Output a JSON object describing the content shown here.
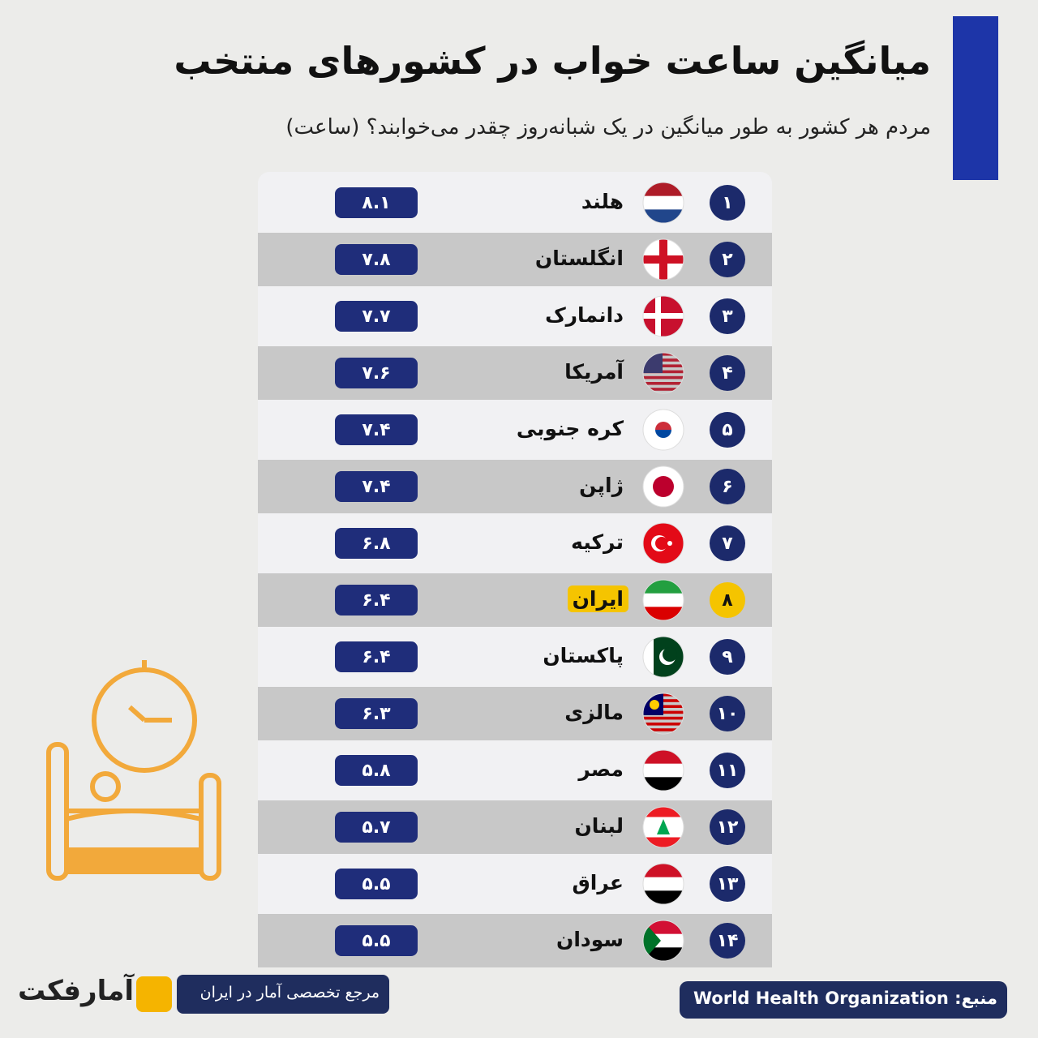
{
  "header": {
    "title": "میانگین ساعت خواب در کشورهای منتخب",
    "subtitle": "مردم هر کشور به طور میانگین در یک شبانه‌روز چقدر می‌خوابند؟ (ساعت)"
  },
  "table": {
    "rows": [
      [
        "۱",
        "هلند",
        "۸.۱"
      ],
      [
        "۲",
        "انگلستان",
        "۷.۸"
      ],
      [
        "۳",
        "دانمارک",
        "۷.۷"
      ],
      [
        "۴",
        "آمریکا",
        "۷.۶"
      ],
      [
        "۵",
        "کره جنوبی",
        "۷.۴"
      ],
      [
        "۶",
        "ژاپن",
        "۷.۴"
      ],
      [
        "۷",
        "ترکیه",
        "۶.۸"
      ],
      [
        "۸",
        "ایران",
        "۶.۴"
      ],
      [
        "۹",
        "پاکستان",
        "۶.۴"
      ],
      [
        "۱۰",
        "مالزی",
        "۶.۳"
      ],
      [
        "۱۱",
        "مصر",
        "۵.۸"
      ],
      [
        "۱۲",
        "لبنان",
        "۵.۷"
      ],
      [
        "۱۳",
        "عراق",
        "۵.۵"
      ],
      [
        "۱۴",
        "سودان",
        "۵.۵"
      ]
    ]
  },
  "footer": {
    "source_label": "منبع:",
    "source": "World Health Organization",
    "tagline": "مرجع تخصصی آمار در ایران",
    "logo": "آمارفکت"
  }
}
